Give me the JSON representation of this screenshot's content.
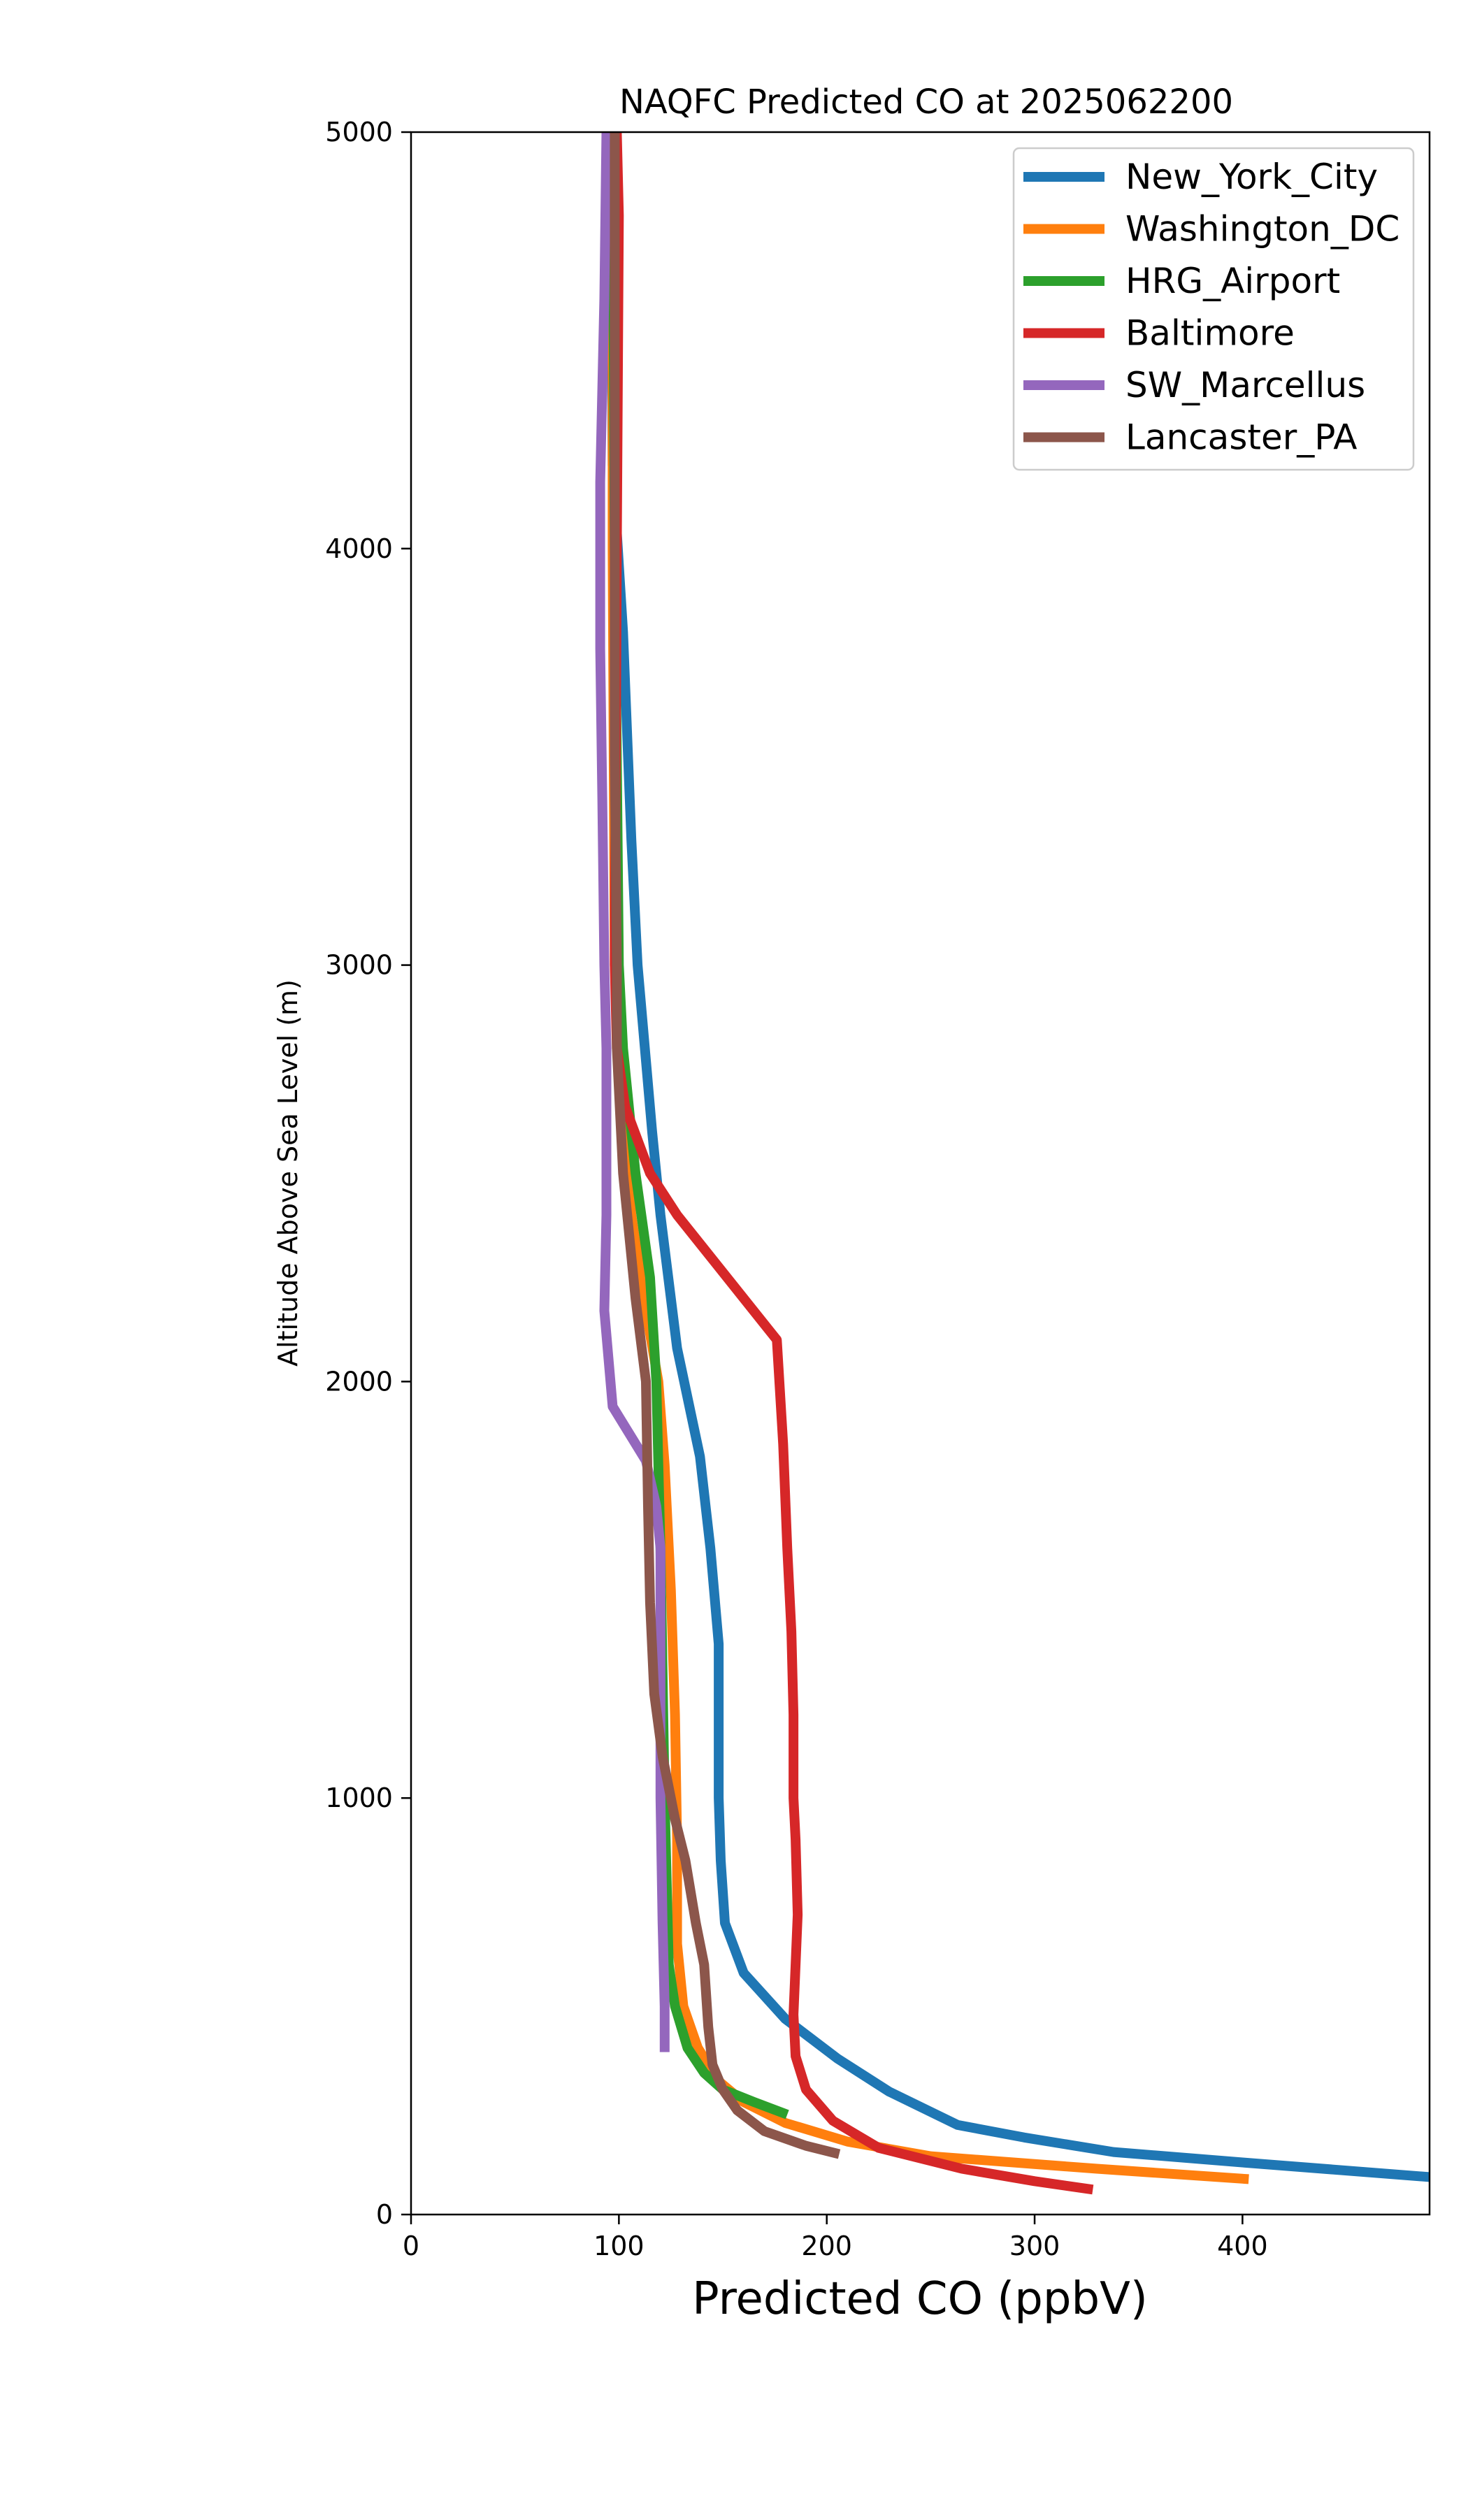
{
  "chart_data": {
    "type": "line",
    "title": "NAQFC Predicted CO at 2025062200",
    "xlabel": "Predicted CO (ppbV)",
    "ylabel": "Altitude Above Sea Level (m)",
    "xlim": [
      0,
      490
    ],
    "ylim": [
      0,
      5000
    ],
    "xticks": [
      0,
      100,
      200,
      300,
      400
    ],
    "yticks": [
      0,
      1000,
      2000,
      3000,
      4000,
      5000
    ],
    "grid": false,
    "legend_position": "top-right",
    "series": [
      {
        "name": "New_York_City",
        "color": "#1f77b4",
        "points": [
          [
            490,
            90
          ],
          [
            400,
            125
          ],
          [
            338,
            150
          ],
          [
            295,
            185
          ],
          [
            263,
            215
          ],
          [
            230,
            295
          ],
          [
            205,
            375
          ],
          [
            180,
            470
          ],
          [
            160,
            580
          ],
          [
            151,
            700
          ],
          [
            149,
            850
          ],
          [
            148,
            1000
          ],
          [
            148,
            1200
          ],
          [
            148,
            1370
          ],
          [
            144,
            1600
          ],
          [
            139,
            1820
          ],
          [
            128,
            2080
          ],
          [
            120,
            2400
          ],
          [
            116,
            2600
          ],
          [
            109,
            3000
          ],
          [
            106,
            3300
          ],
          [
            102,
            3800
          ],
          [
            97,
            4200
          ],
          [
            96,
            5000
          ]
        ]
      },
      {
        "name": "Washington_DC",
        "color": "#ff7f0e",
        "points": [
          [
            403,
            85
          ],
          [
            330,
            110
          ],
          [
            250,
            140
          ],
          [
            210,
            175
          ],
          [
            180,
            220
          ],
          [
            160,
            270
          ],
          [
            148,
            320
          ],
          [
            138,
            400
          ],
          [
            131,
            500
          ],
          [
            128,
            650
          ],
          [
            128,
            900
          ],
          [
            127,
            1200
          ],
          [
            125,
            1500
          ],
          [
            122,
            1800
          ],
          [
            119,
            2000
          ],
          [
            112,
            2200
          ],
          [
            106,
            2400
          ],
          [
            101,
            2700
          ],
          [
            98,
            3000
          ],
          [
            97,
            4000
          ],
          [
            97,
            5000
          ]
        ]
      },
      {
        "name": "HRG_Airport",
        "color": "#2ca02c",
        "points": [
          [
            181,
            240
          ],
          [
            165,
            270
          ],
          [
            150,
            300
          ],
          [
            141,
            340
          ],
          [
            133,
            400
          ],
          [
            127,
            500
          ],
          [
            124,
            600
          ],
          [
            123,
            800
          ],
          [
            122,
            1000
          ],
          [
            121,
            1300
          ],
          [
            120,
            1600
          ],
          [
            119,
            1800
          ],
          [
            118,
            2000
          ],
          [
            115,
            2250
          ],
          [
            108,
            2500
          ],
          [
            102,
            2800
          ],
          [
            100,
            3000
          ],
          [
            98,
            4000
          ],
          [
            97,
            5000
          ]
        ]
      },
      {
        "name": "Baltimore",
        "color": "#d62728",
        "points": [
          [
            328,
            60
          ],
          [
            300,
            80
          ],
          [
            265,
            110
          ],
          [
            225,
            160
          ],
          [
            203,
            225
          ],
          [
            190,
            300
          ],
          [
            185,
            380
          ],
          [
            184,
            480
          ],
          [
            185,
            600
          ],
          [
            186,
            720
          ],
          [
            185,
            900
          ],
          [
            184,
            1000
          ],
          [
            184,
            1200
          ],
          [
            183,
            1400
          ],
          [
            181,
            1600
          ],
          [
            179,
            1850
          ],
          [
            176,
            2100
          ],
          [
            128,
            2400
          ],
          [
            115,
            2500
          ],
          [
            103,
            2660
          ],
          [
            99,
            2800
          ],
          [
            98,
            3000
          ],
          [
            99,
            4000
          ],
          [
            100,
            4800
          ],
          [
            99,
            5000
          ]
        ]
      },
      {
        "name": "SW_Marcellus",
        "color": "#9467bd",
        "points": [
          [
            122,
            390
          ],
          [
            122,
            500
          ],
          [
            121,
            700
          ],
          [
            120,
            1000
          ],
          [
            120,
            1300
          ],
          [
            120,
            1600
          ],
          [
            118,
            1700
          ],
          [
            113,
            1810
          ],
          [
            97,
            1940
          ],
          [
            93,
            2170
          ],
          [
            94,
            2400
          ],
          [
            94,
            2800
          ],
          [
            93,
            3000
          ],
          [
            92,
            3400
          ],
          [
            91,
            3760
          ],
          [
            91,
            4160
          ],
          [
            93,
            4600
          ],
          [
            94,
            5000
          ]
        ]
      },
      {
        "name": "Lancaster_PA",
        "color": "#8c564b",
        "points": [
          [
            206,
            145
          ],
          [
            190,
            165
          ],
          [
            170,
            200
          ],
          [
            157,
            250
          ],
          [
            150,
            300
          ],
          [
            145,
            360
          ],
          [
            143,
            450
          ],
          [
            141,
            600
          ],
          [
            137,
            700
          ],
          [
            132,
            850
          ],
          [
            127,
            950
          ],
          [
            121,
            1100
          ],
          [
            117,
            1250
          ],
          [
            115,
            1470
          ],
          [
            114,
            1700
          ],
          [
            113,
            2000
          ],
          [
            108,
            2200
          ],
          [
            102,
            2500
          ],
          [
            99,
            2800
          ],
          [
            99,
            3000
          ],
          [
            98,
            3500
          ],
          [
            98,
            4000
          ],
          [
            98,
            4500
          ],
          [
            98,
            5000
          ]
        ]
      }
    ]
  }
}
